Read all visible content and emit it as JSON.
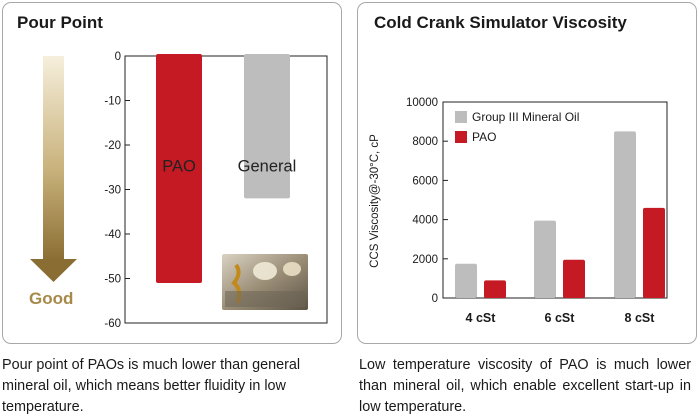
{
  "chart_data": [
    {
      "type": "bar",
      "title": "Pour Point",
      "categories": [
        "PAO",
        "General"
      ],
      "values": [
        -51,
        -32
      ],
      "ylim": [
        -60,
        0
      ],
      "yticks": [
        0,
        -10,
        -20,
        -30,
        -40,
        -50,
        -60
      ],
      "colors": {
        "PAO": "#c51a23",
        "General": "#bdbdbd"
      },
      "arrow_label": "Good",
      "grid": false
    },
    {
      "type": "bar",
      "title": "Cold Crank Simulator Viscosity",
      "ylabel": "CCS Viscosity@-30°C, cP",
      "categories": [
        "4 cSt",
        "6 cSt",
        "8 cSt"
      ],
      "series": [
        {
          "name": "Group III Mineral Oil",
          "values": [
            1750,
            3950,
            8500
          ],
          "color": "#bdbdbd"
        },
        {
          "name": "PAO",
          "values": [
            900,
            1950,
            4600
          ],
          "color": "#c51a23"
        }
      ],
      "ylim": [
        0,
        10000
      ],
      "yticks": [
        0,
        2000,
        4000,
        6000,
        8000,
        10000
      ],
      "legend": "top-left",
      "grid": false
    }
  ],
  "captions": {
    "left": "Pour point of PAOs is much lower than general mineral oil, which means better fluidity in low temperature.",
    "right": "Low temperature viscosity of PAO is much lower than mineral oil, which enable excellent start-up in low temperature."
  },
  "icons": {
    "photo": "oil-pour-photo-icon",
    "arrow": "down-arrow-icon"
  }
}
